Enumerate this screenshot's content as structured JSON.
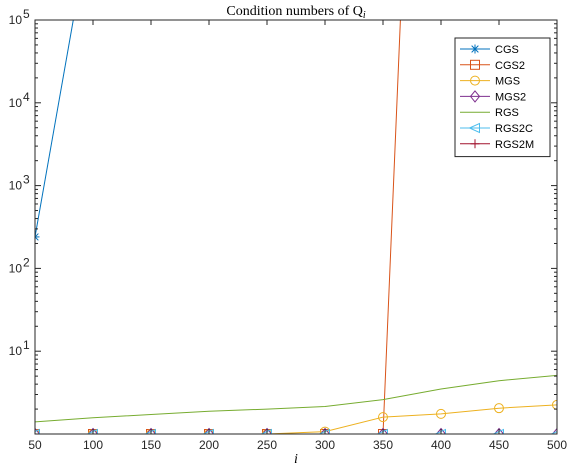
{
  "chart_data": {
    "type": "line",
    "title": "Condition numbers of Q",
    "title_subscript": "i",
    "xlabel": "i",
    "ylabel": "",
    "x": [
      50,
      100,
      150,
      200,
      250,
      300,
      350,
      400,
      450,
      500
    ],
    "xlim": [
      50,
      500
    ],
    "ylim": [
      1,
      100000
    ],
    "yscale": "log",
    "xticks": [
      "50",
      "100",
      "150",
      "200",
      "250",
      "300",
      "350",
      "400",
      "450",
      "500"
    ],
    "yticks": [
      {
        "value": 10,
        "base": "10",
        "exp": "1"
      },
      {
        "value": 100,
        "base": "10",
        "exp": "2"
      },
      {
        "value": 1000,
        "base": "10",
        "exp": "3"
      },
      {
        "value": 10000,
        "base": "10",
        "exp": "4"
      },
      {
        "value": 100000,
        "base": "10",
        "exp": "5"
      }
    ],
    "grid": false,
    "legend_position": "top-right",
    "series": [
      {
        "name": "CGS",
        "color": "#0072BD",
        "marker": "star",
        "points": [
          [
            50,
            240
          ],
          [
            83,
            100000
          ]
        ]
      },
      {
        "name": "CGS2",
        "color": "#D95319",
        "marker": "square",
        "points": [
          [
            50,
            1
          ],
          [
            100,
            1
          ],
          [
            150,
            1
          ],
          [
            200,
            1
          ],
          [
            250,
            1
          ],
          [
            300,
            1
          ],
          [
            350,
            1
          ],
          [
            365,
            100000
          ]
        ]
      },
      {
        "name": "MGS",
        "color": "#EDB120",
        "marker": "circle",
        "points": [
          [
            50,
            1
          ],
          [
            100,
            1
          ],
          [
            150,
            1
          ],
          [
            200,
            1
          ],
          [
            250,
            1
          ],
          [
            300,
            1.07
          ],
          [
            350,
            1.6
          ],
          [
            400,
            1.75
          ],
          [
            450,
            2.05
          ],
          [
            500,
            2.25
          ]
        ]
      },
      {
        "name": "MGS2",
        "color": "#7E2F8E",
        "marker": "diamond",
        "points": [
          [
            50,
            1
          ],
          [
            100,
            1
          ],
          [
            150,
            1
          ],
          [
            200,
            1
          ],
          [
            250,
            1
          ],
          [
            300,
            1
          ],
          [
            350,
            1
          ],
          [
            400,
            1
          ],
          [
            450,
            1
          ],
          [
            500,
            1
          ]
        ]
      },
      {
        "name": "RGS",
        "color": "#77AC30",
        "marker": "none",
        "points": [
          [
            50,
            1.4
          ],
          [
            100,
            1.57
          ],
          [
            150,
            1.72
          ],
          [
            200,
            1.88
          ],
          [
            250,
            2.0
          ],
          [
            300,
            2.15
          ],
          [
            350,
            2.6
          ],
          [
            400,
            3.5
          ],
          [
            450,
            4.4
          ],
          [
            500,
            5.1
          ]
        ]
      },
      {
        "name": "RGS2C",
        "color": "#4DBEEE",
        "marker": "triangle-left",
        "points": [
          [
            50,
            1
          ],
          [
            100,
            1
          ],
          [
            150,
            1
          ],
          [
            200,
            1
          ],
          [
            250,
            1
          ],
          [
            300,
            1
          ],
          [
            350,
            1
          ],
          [
            400,
            1
          ],
          [
            450,
            1
          ],
          [
            500,
            1
          ]
        ]
      },
      {
        "name": "RGS2M",
        "color": "#A2142F",
        "marker": "plus",
        "points": [
          [
            50,
            1
          ],
          [
            100,
            1
          ],
          [
            150,
            1
          ],
          [
            200,
            1
          ],
          [
            250,
            1
          ],
          [
            300,
            1
          ],
          [
            350,
            1
          ],
          [
            400,
            1
          ],
          [
            450,
            1
          ],
          [
            500,
            1
          ]
        ]
      }
    ]
  }
}
